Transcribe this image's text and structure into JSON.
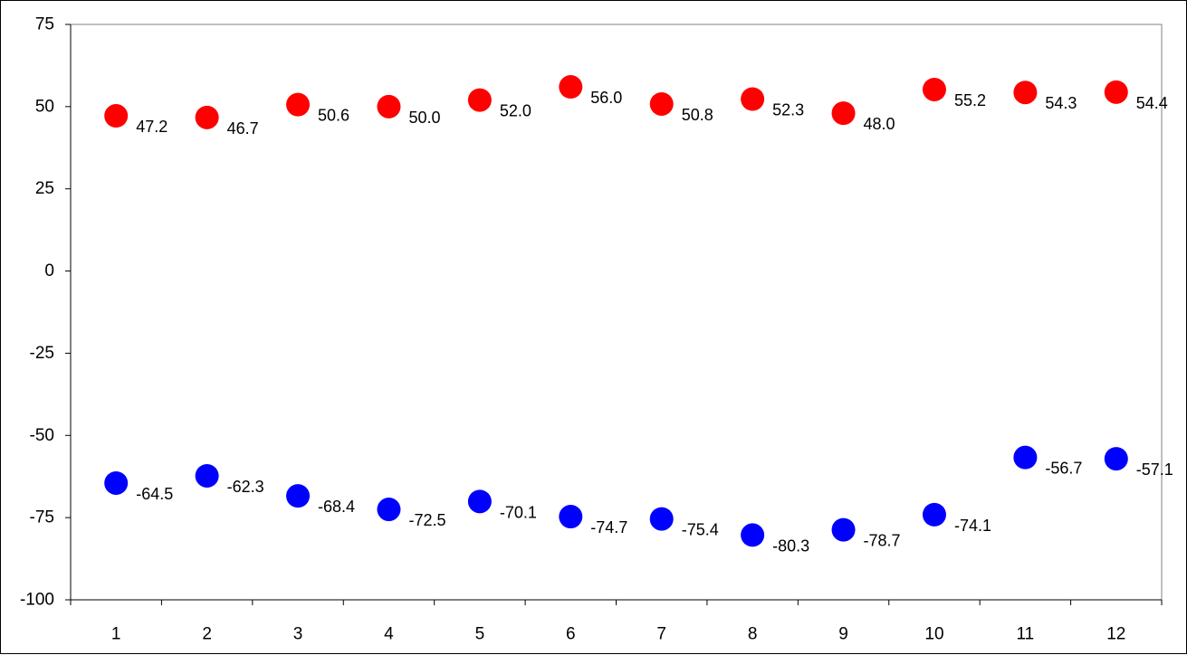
{
  "chart_data": {
    "type": "scatter",
    "title": "",
    "xlabel": "",
    "ylabel": "",
    "x": [
      1,
      2,
      3,
      4,
      5,
      6,
      7,
      8,
      9,
      10,
      11,
      12
    ],
    "x_tick_labels": [
      "1",
      "2",
      "3",
      "4",
      "5",
      "6",
      "7",
      "8",
      "9",
      "10",
      "11",
      "12"
    ],
    "ylim": [
      -100,
      75
    ],
    "y_ticks": [
      75,
      50,
      25,
      0,
      -25,
      -50,
      -75,
      -100
    ],
    "y_tick_labels": [
      "75",
      "50",
      "25",
      "0",
      "-25",
      "-50",
      "-75",
      "-100"
    ],
    "grid": false,
    "legend": "none",
    "series": [
      {
        "color": "#ff0000",
        "values": [
          47.2,
          46.7,
          50.6,
          50.0,
          52.0,
          56.0,
          50.8,
          52.3,
          48.0,
          55.2,
          54.3,
          54.4
        ],
        "labels": [
          "47.2",
          "46.7",
          "50.6",
          "50.0",
          "52.0",
          "56.0",
          "50.8",
          "52.3",
          "48.0",
          "55.2",
          "54.3",
          "54.4"
        ]
      },
      {
        "color": "#0000ff",
        "values": [
          -64.5,
          -62.3,
          -68.4,
          -72.5,
          -70.1,
          -74.7,
          -75.4,
          -80.3,
          -78.7,
          -74.1,
          -56.7,
          -57.1
        ],
        "labels": [
          "-64.5",
          "-62.3",
          "-68.4",
          "-72.5",
          "-70.1",
          "-74.7",
          "-75.4",
          "-80.3",
          "-78.7",
          "-74.1",
          "-56.7",
          "-57.1"
        ]
      }
    ]
  }
}
